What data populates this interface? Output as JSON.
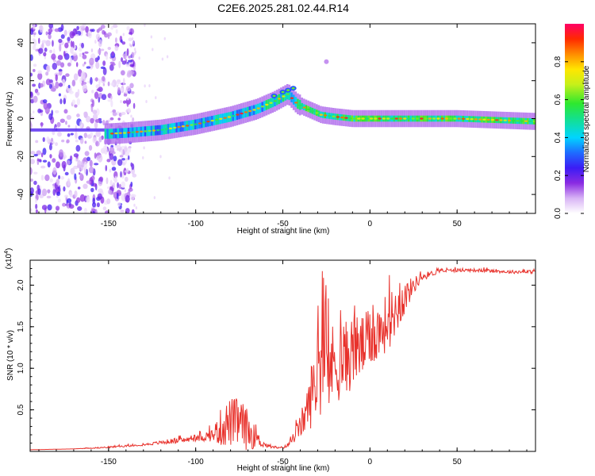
{
  "title": "C2E6.2025.281.02.44.R14",
  "chart_data": [
    {
      "type": "heatmap",
      "title": "C2E6.2025.281.02.44.R14",
      "xlabel": "Height of straight line (km)",
      "ylabel": "Frequency (Hz)",
      "xlim": [
        -195,
        95
      ],
      "ylim": [
        -50,
        50
      ],
      "xticks": [
        -150,
        -100,
        -50,
        0,
        50
      ],
      "yticks": [
        -40,
        -20,
        0,
        20,
        40
      ],
      "colorbar": {
        "label": "Normalized spectral amplitude",
        "range": [
          0,
          1
        ],
        "ticks": [
          0.0,
          0.2,
          0.4,
          0.6,
          0.8
        ],
        "tick_labels": [
          "0.0",
          "0.2",
          "0.4",
          "0.6",
          "0.8"
        ]
      },
      "ridge": {
        "x": [
          -150,
          -140,
          -120,
          -100,
          -80,
          -65,
          -55,
          -47,
          -42,
          -38,
          -33,
          -28,
          -20,
          -10,
          0,
          20,
          50,
          80,
          95
        ],
        "freq": [
          -8,
          -7.5,
          -6,
          -3,
          1,
          5,
          9,
          13,
          8,
          6,
          4,
          2,
          1,
          0,
          0,
          0,
          0,
          -1,
          -1.5
        ]
      },
      "upper_branch": {
        "x": [
          -55,
          -50,
          -47,
          -44
        ],
        "freq": [
          12,
          14,
          15,
          16
        ]
      }
    },
    {
      "type": "line",
      "xlabel": "Height of straight line (km)",
      "ylabel": "SNR (10 * v/v)",
      "y_multiplier": "(x10",
      "y_multiplier_exp": "4",
      "y_multiplier_close": ")",
      "xlim": [
        -195,
        95
      ],
      "ylim": [
        0,
        2.3
      ],
      "xticks": [
        -150,
        -100,
        -50,
        0,
        50
      ],
      "yticks": [
        0.5,
        1.0,
        1.5,
        2.0
      ],
      "ytick_labels": [
        "0.5",
        "1.0",
        "1.5",
        "2.0"
      ],
      "series": [
        {
          "name": "SNR",
          "color": "#e8322c",
          "x": [
            -195,
            -170,
            -150,
            -130,
            -115,
            -100,
            -90,
            -85,
            -80,
            -75,
            -70,
            -65,
            -62,
            -58,
            -52,
            -48,
            -44,
            -40,
            -36,
            -32,
            -30,
            -28,
            -25,
            -20,
            -15,
            -10,
            -5,
            0,
            5,
            10,
            15,
            20,
            25,
            30,
            40,
            50,
            60,
            70,
            80,
            95
          ],
          "values": [
            0.02,
            0.03,
            0.05,
            0.08,
            0.12,
            0.15,
            0.2,
            0.3,
            0.35,
            0.35,
            0.25,
            0.15,
            0.1,
            0.06,
            0.04,
            0.06,
            0.15,
            0.3,
            0.5,
            0.8,
            1.0,
            1.05,
            1.0,
            1.05,
            1.1,
            1.2,
            1.25,
            1.35,
            1.45,
            1.55,
            1.7,
            1.85,
            2.0,
            2.1,
            2.17,
            2.18,
            2.18,
            2.17,
            2.16,
            2.16
          ],
          "spread": [
            0.0,
            0.0,
            0.01,
            0.01,
            0.03,
            0.03,
            0.08,
            0.25,
            0.3,
            0.3,
            0.25,
            0.1,
            0.05,
            0.02,
            0.01,
            0.02,
            0.05,
            0.15,
            0.25,
            0.5,
            0.7,
            0.6,
            0.55,
            0.5,
            0.45,
            0.45,
            0.4,
            0.35,
            0.35,
            0.35,
            0.3,
            0.2,
            0.1,
            0.05,
            0.02,
            0.02,
            0.02,
            0.02,
            0.02,
            0.02
          ]
        }
      ]
    }
  ]
}
